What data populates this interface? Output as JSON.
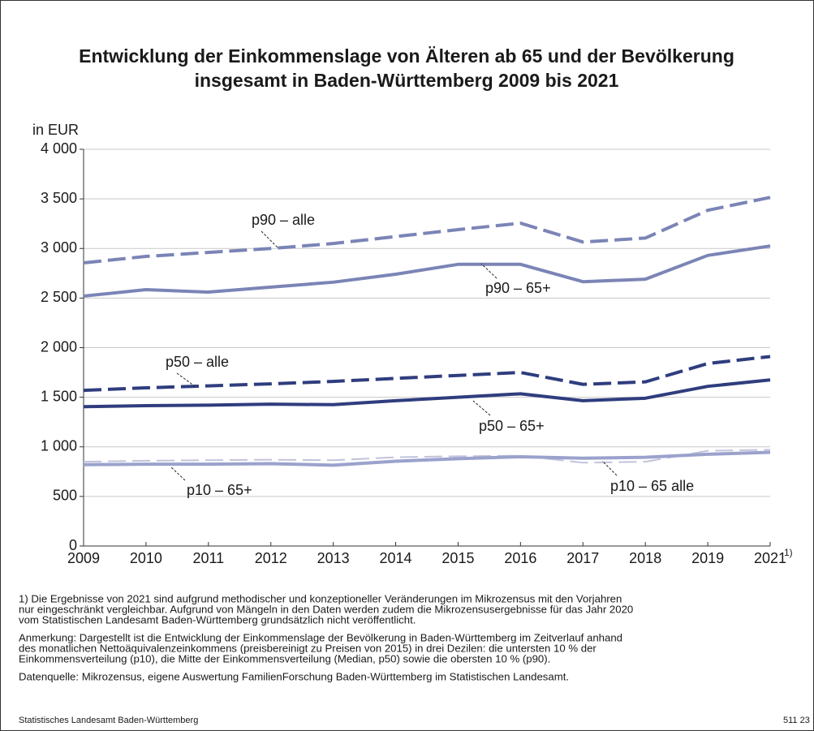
{
  "chart_data": {
    "type": "line",
    "title": [
      "Entwicklung der Einkommenslage von Älteren ab 65 und der Bevölkerung",
      "insgesamt in Baden-Württemberg 2009 bis 2021"
    ],
    "y_axis_label": "in EUR",
    "categories": [
      "2009",
      "2010",
      "2011",
      "2012",
      "2013",
      "2014",
      "2015",
      "2016",
      "2017",
      "2018",
      "2019",
      "2021"
    ],
    "category_footnote": "1)",
    "ylim": [
      0,
      4000
    ],
    "yticks": [
      0,
      500,
      {
        "value": 1000,
        "label": "1 000"
      },
      {
        "value": 1500,
        "label": "1 500"
      },
      {
        "value": 2000,
        "label": "2 000"
      },
      {
        "value": 2500,
        "label": "2 500"
      },
      {
        "value": 3000,
        "label": "3 000"
      },
      {
        "value": 3500,
        "label": "3 500"
      },
      {
        "value": 4000,
        "label": "4 000"
      }
    ],
    "grid": true,
    "series": [
      {
        "name": "p90 – alle",
        "color": "#7b84b6",
        "dashed": true,
        "values": [
          2855,
          2920,
          2960,
          3000,
          3050,
          3120,
          3190,
          3255,
          3065,
          3105,
          3385,
          3515
        ]
      },
      {
        "name": "p90 – 65+",
        "color": "#7b84b6",
        "dashed": false,
        "values": [
          2520,
          2585,
          2560,
          2610,
          2660,
          2740,
          2840,
          2840,
          2665,
          2690,
          2930,
          3025
        ]
      },
      {
        "name": "p50 – alle",
        "color": "#2f3d7e",
        "dashed": true,
        "values": [
          1570,
          1595,
          1615,
          1635,
          1660,
          1690,
          1720,
          1750,
          1630,
          1655,
          1840,
          1910
        ]
      },
      {
        "name": "p50 – 65+",
        "color": "#2f3d7e",
        "dashed": false,
        "values": [
          1405,
          1415,
          1420,
          1430,
          1425,
          1465,
          1500,
          1535,
          1465,
          1490,
          1610,
          1675
        ]
      },
      {
        "name": "p10 – 65 alle",
        "color": "#c0c3da",
        "dashed": true,
        "values": [
          850,
          860,
          865,
          870,
          865,
          895,
          905,
          910,
          840,
          850,
          960,
          970
        ]
      },
      {
        "name": "p10 – 65+",
        "color": "#9aa2cc",
        "dashed": false,
        "values": [
          820,
          825,
          825,
          830,
          815,
          855,
          880,
          900,
          885,
          895,
          925,
          945
        ]
      }
    ],
    "notes": [
      [
        "1) Die Ergebnisse von 2021 sind aufgrund methodischer und konzeptioneller Veränderungen im Mikrozensus mit den Vorjahren",
        "nur eingeschränkt vergleichbar. Aufgrund von Mängeln in den Daten werden zudem die Mikrozensusergebnisse für das Jahr 2020",
        "vom Statistischen Landesamt Baden-Württemberg grundsätzlich nicht veröffentlicht."
      ],
      [
        "Anmerkung: Dargestellt ist die Entwicklung der Einkommenslage der Bevölkerung in Baden-Württemberg im Zeitverlauf anhand",
        "des monatlichen Nettoäquivalenzeinkommens (preisbereinigt zu Preisen von 2015) in drei Dezilen: die untersten 10 % der",
        "Einkommensverteilung (p10), die Mitte der Einkommensverteilung (Median, p50) sowie die obersten 10 % (p90)."
      ],
      [
        "Datenquelle: Mikrozensus, eigene Auswertung FamilienForschung Baden-Württemberg im Statistischen Landesamt."
      ]
    ],
    "source": "Statistisches Landesamt Baden-Württemberg",
    "figure_id": "511 23"
  }
}
